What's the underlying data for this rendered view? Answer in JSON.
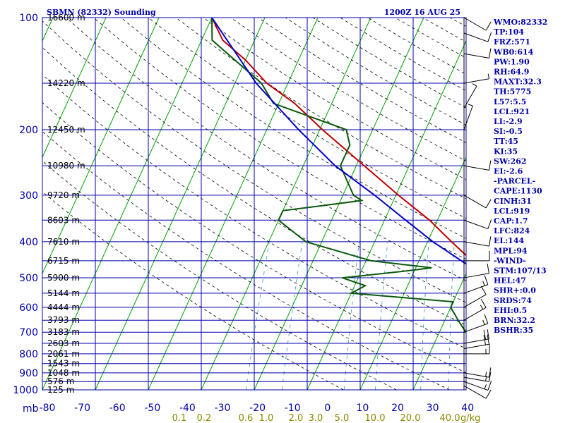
{
  "header": {
    "station": "SBMN (82332) Sounding",
    "time": "1200Z 16 AUG 25"
  },
  "colors": {
    "grid": "#0000aa",
    "isotherm_skewed": "#00a000",
    "dry_adiabat": "#000000",
    "mixing_ratio": "#3a8fd0",
    "temperature": "#c00000",
    "dewpoint": "#0b5a0b",
    "parcel": "#0000cc",
    "labels": "#0000aa",
    "mixing_label": "#888800"
  },
  "chart_data": {
    "type": "line",
    "title": "SBMN (82332) Sounding",
    "subtitle": "1200Z 16 AUG 25",
    "pressure_unit": "mb",
    "mixing_unit": "g/kg",
    "xlim": [
      -80,
      0
    ],
    "ylim": [
      1000,
      100
    ],
    "y_scale": "log",
    "grid": true,
    "x_tick_labels": [
      "-80",
      "-70",
      "-60",
      "-50",
      "-40",
      "-30",
      "-20",
      "-10",
      "0",
      "10",
      "20",
      "30",
      "40"
    ],
    "pressure_ticks": [
      {
        "p": 100,
        "label": "100",
        "height": "16600 m"
      },
      {
        "p": 150,
        "label": "",
        "height": "14220 m"
      },
      {
        "p": 200,
        "label": "200",
        "height": "12450 m"
      },
      {
        "p": 250,
        "label": "",
        "height": "10980 m"
      },
      {
        "p": 300,
        "label": "300",
        "height": "9720 m"
      },
      {
        "p": 350,
        "label": "",
        "height": "8603 m"
      },
      {
        "p": 400,
        "label": "400",
        "height": "7610 m"
      },
      {
        "p": 450,
        "label": "",
        "height": "6715 m"
      },
      {
        "p": 500,
        "label": "500",
        "height": "5900 m"
      },
      {
        "p": 550,
        "label": "",
        "height": "5144 m"
      },
      {
        "p": 600,
        "label": "600",
        "height": "4444 m"
      },
      {
        "p": 650,
        "label": "",
        "height": "3793 m"
      },
      {
        "p": 700,
        "label": "700",
        "height": "3183 m"
      },
      {
        "p": 750,
        "label": "",
        "height": "2603 m"
      },
      {
        "p": 800,
        "label": "800",
        "height": "2061 m"
      },
      {
        "p": 850,
        "label": "",
        "height": "1543 m"
      },
      {
        "p": 900,
        "label": "900",
        "height": "1048 m"
      },
      {
        "p": 950,
        "label": "",
        "height": "576 m"
      },
      {
        "p": 1000,
        "label": "1000",
        "height": "125 m"
      }
    ],
    "mixing_ratio_labels": [
      "0.1",
      "0.2",
      "0.6",
      "1.0",
      "2.0",
      "3.0",
      "5.0",
      "10.0",
      "20.0",
      "40.0"
    ],
    "series": [
      {
        "name": "Temperature",
        "points": [
          [
            1000,
            27
          ],
          [
            975,
            25.5
          ],
          [
            950,
            23
          ],
          [
            925,
            21.5
          ],
          [
            900,
            19.5
          ],
          [
            875,
            17.5
          ],
          [
            850,
            16.5
          ],
          [
            800,
            14
          ],
          [
            750,
            11.5
          ],
          [
            700,
            9
          ],
          [
            675,
            6.5
          ],
          [
            650,
            5.5
          ],
          [
            600,
            2.5
          ],
          [
            580,
            0.8
          ],
          [
            550,
            -1
          ],
          [
            525,
            -4
          ],
          [
            500,
            -5.5
          ],
          [
            480,
            -7.2
          ],
          [
            470,
            -8.5
          ],
          [
            450,
            -10
          ],
          [
            400,
            -15.5
          ],
          [
            350,
            -21.5
          ],
          [
            300,
            -29.5
          ],
          [
            250,
            -38.5
          ],
          [
            200,
            -49.5
          ],
          [
            170,
            -57
          ],
          [
            150,
            -64
          ],
          [
            130,
            -70
          ],
          [
            115,
            -76
          ],
          [
            100,
            -80
          ]
        ]
      },
      {
        "name": "Dewpoint",
        "points": [
          [
            1000,
            20
          ],
          [
            975,
            20
          ],
          [
            950,
            19
          ],
          [
            925,
            18
          ],
          [
            900,
            15
          ],
          [
            875,
            12
          ],
          [
            850,
            9
          ],
          [
            825,
            6
          ],
          [
            800,
            0
          ],
          [
            750,
            -2
          ],
          [
            700,
            -5
          ],
          [
            650,
            -7.5
          ],
          [
            600,
            -10
          ],
          [
            580,
            -10
          ],
          [
            550,
            -30
          ],
          [
            525,
            -28
          ],
          [
            500,
            -33
          ],
          [
            480,
            -22
          ],
          [
            470,
            -17
          ],
          [
            450,
            -29
          ],
          [
            400,
            -43
          ],
          [
            350,
            -50
          ],
          [
            330,
            -50
          ],
          [
            320,
            -43
          ],
          [
            310,
            -36
          ],
          [
            300,
            -38
          ],
          [
            250,
            -43
          ],
          [
            220,
            -43
          ],
          [
            200,
            -45
          ],
          [
            170,
            -61
          ],
          [
            150,
            -65
          ],
          [
            130,
            -72
          ],
          [
            115,
            -78
          ],
          [
            100,
            -80
          ]
        ]
      },
      {
        "name": "Parcel",
        "points": [
          [
            1000,
            26
          ],
          [
            950,
            22.5
          ],
          [
            919,
            20.5
          ],
          [
            900,
            20
          ],
          [
            850,
            18
          ],
          [
            800,
            16
          ],
          [
            750,
            14
          ],
          [
            700,
            11
          ],
          [
            650,
            7.5
          ],
          [
            600,
            4
          ],
          [
            550,
            -0.5
          ],
          [
            500,
            -5.5
          ],
          [
            450,
            -12
          ],
          [
            400,
            -19
          ],
          [
            350,
            -26
          ],
          [
            300,
            -34
          ],
          [
            250,
            -44
          ],
          [
            200,
            -54
          ],
          [
            150,
            -66
          ],
          [
            100,
            -80
          ]
        ]
      }
    ],
    "indices": [
      "WMO:82332",
      "TP:104",
      "FRZ:571",
      "WB0:614",
      "PW:1.90",
      "RH:64.9",
      "MAXT:32.3",
      "TH:5775",
      "L57:5.5",
      "LCL:921",
      "LI:-2.9",
      "SI:-0.5",
      "TT:45",
      "KI:35",
      "SW:262",
      "EI:-2.6",
      "-PARCEL-",
      "CAPE:1130",
      "CINH:31",
      "LCL:919",
      "CAP:1.7",
      "LFC:824",
      "EL:144",
      "MPL:94",
      "-WIND-",
      "STM:107/13",
      "HEL:47",
      "SHR+:0.0",
      "SRDS:74",
      "EHI:0.5",
      "BRN:32.2",
      "BSHR:35"
    ],
    "winds": [
      {
        "p": 975,
        "dir": 120,
        "spd": 10
      },
      {
        "p": 950,
        "dir": 110,
        "spd": 15
      },
      {
        "p": 925,
        "dir": 100,
        "spd": 15
      },
      {
        "p": 900,
        "dir": 100,
        "spd": 15
      },
      {
        "p": 800,
        "dir": 90,
        "spd": 15
      },
      {
        "p": 775,
        "dir": 80,
        "spd": 20
      },
      {
        "p": 750,
        "dir": 80,
        "spd": 20
      },
      {
        "p": 700,
        "dir": 70,
        "spd": 15
      },
      {
        "p": 650,
        "dir": 60,
        "spd": 15
      },
      {
        "p": 600,
        "dir": 60,
        "spd": 10
      },
      {
        "p": 550,
        "dir": 70,
        "spd": 15
      },
      {
        "p": 500,
        "dir": 80,
        "spd": 10
      },
      {
        "p": 450,
        "dir": 90,
        "spd": 10
      },
      {
        "p": 400,
        "dir": 100,
        "spd": 10
      },
      {
        "p": 350,
        "dir": 110,
        "spd": 10
      },
      {
        "p": 300,
        "dir": 120,
        "spd": 10
      },
      {
        "p": 250,
        "dir": 100,
        "spd": 10
      },
      {
        "p": 200,
        "dir": 20,
        "spd": 5
      },
      {
        "p": 175,
        "dir": 30,
        "spd": 5
      },
      {
        "p": 150,
        "dir": 80,
        "spd": 5
      },
      {
        "p": 125,
        "dir": 100,
        "spd": 10
      },
      {
        "p": 110,
        "dir": 110,
        "spd": 10
      },
      {
        "p": 100,
        "dir": 120,
        "spd": 10
      }
    ]
  }
}
